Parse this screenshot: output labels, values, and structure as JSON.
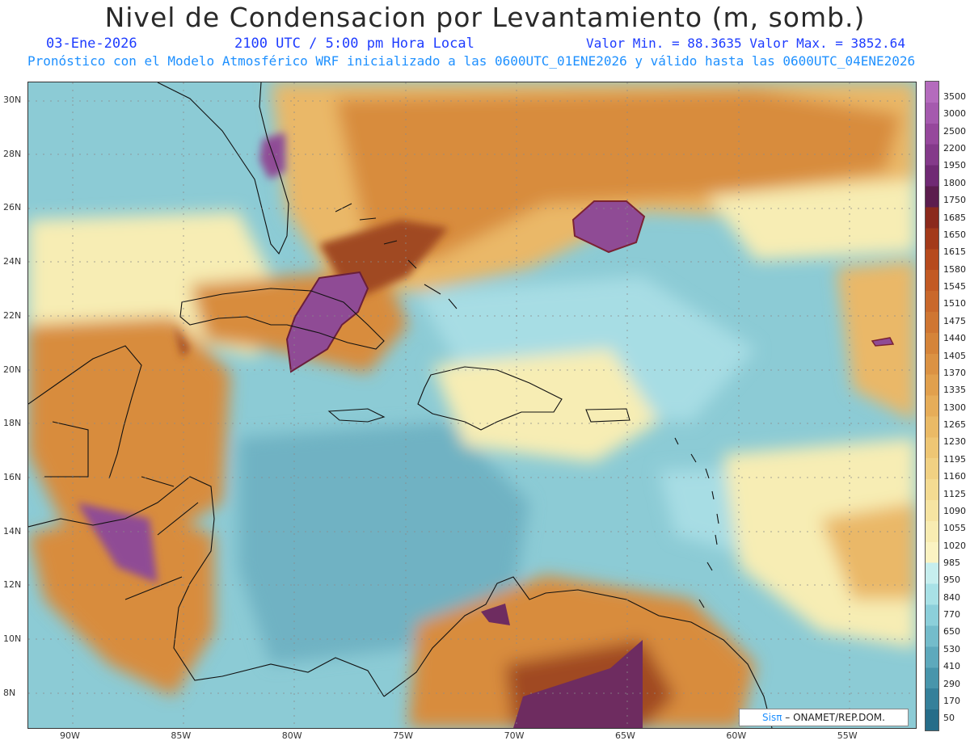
{
  "header": {
    "title": "Nivel de Condensacion por Levantamiento (m, somb.)",
    "date": "03-Ene-2026",
    "time": "2100 UTC / 5:00 pm Hora Local",
    "minmax": "Valor Min. = 88.3635   Valor Max. = 3852.64",
    "model": "Pronóstico con el Modelo Atmosférico WRF inicializado a las 0600UTC_01ENE2026 y válido hasta las  0600UTC_04ENE2026"
  },
  "axes": {
    "lat_labels": [
      "30N",
      "28N",
      "26N",
      "24N",
      "22N",
      "20N",
      "18N",
      "16N",
      "14N",
      "12N",
      "10N",
      "8N"
    ],
    "lon_labels": [
      "90W",
      "85W",
      "80W",
      "75W",
      "70W",
      "65W",
      "60W",
      "55W"
    ]
  },
  "colorbar": {
    "labels": [
      "3500",
      "3000",
      "2500",
      "2200",
      "1950",
      "1800",
      "1750",
      "1685",
      "1650",
      "1615",
      "1580",
      "1545",
      "1510",
      "1475",
      "1440",
      "1405",
      "1370",
      "1335",
      "1300",
      "1265",
      "1230",
      "1195",
      "1160",
      "1125",
      "1090",
      "1055",
      "1020",
      "985",
      "950",
      "840",
      "770",
      "650",
      "530",
      "410",
      "290",
      "170",
      "50"
    ],
    "colors": [
      "#b46bbd",
      "#a55aae",
      "#96489c",
      "#843a8a",
      "#702a74",
      "#5c1d4e",
      "#8b2a1c",
      "#a33a1a",
      "#b64a1d",
      "#c25a24",
      "#c9682b",
      "#cf7632",
      "#d58439",
      "#db9243",
      "#e1a04d",
      "#e6ad59",
      "#eaba66",
      "#eec674",
      "#f1d183",
      "#f4db92",
      "#f6e4a2",
      "#f8ecb2",
      "#fbf3c2",
      "#c6eeee",
      "#a8e1e6",
      "#8ccfda",
      "#74bccb",
      "#5ea9bc",
      "#4895ab",
      "#35809a",
      "#266d89"
    ]
  },
  "credit": {
    "sis": "Sisπ",
    "rest": " – ONAMET/REP.DOM."
  },
  "map_palette": {
    "ocean_light": "#a7dde4",
    "ocean_mid": "#8ccbd5",
    "ocean_deep": "#6fb2c3",
    "pale_yellow": "#f7edb4",
    "orange_light": "#eab868",
    "orange": "#d88c3e",
    "brown": "#a04a20",
    "purple": "#8f4b95",
    "coast": "#111111"
  }
}
